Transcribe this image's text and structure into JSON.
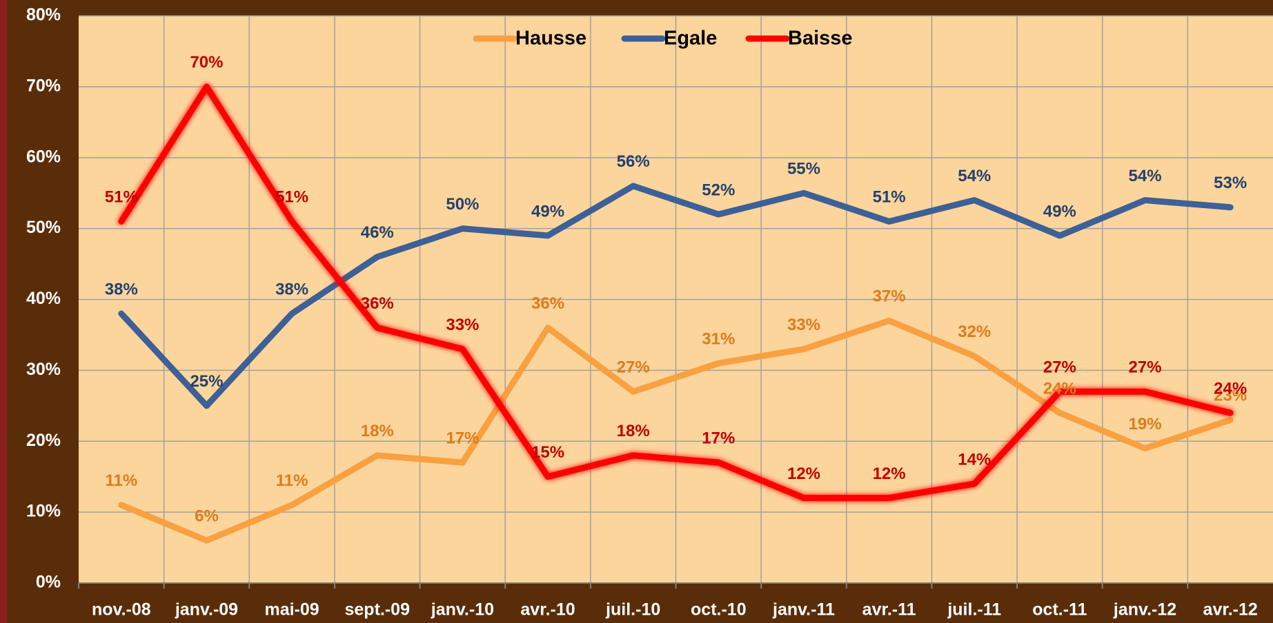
{
  "chart_data": {
    "type": "line",
    "categories": [
      "nov.-08",
      "janv.-09",
      "mai-09",
      "sept.-09",
      "janv.-10",
      "avr.-10",
      "juil.-10",
      "oct.-10",
      "janv.-11",
      "avr.-11",
      "juil.-11",
      "oct.-11",
      "janv.-12",
      "avr.-12"
    ],
    "series": [
      {
        "name": "Hausse",
        "color": "#f9a040",
        "label_color": "#e07b1a",
        "values": [
          11,
          6,
          11,
          18,
          17,
          36,
          27,
          31,
          33,
          37,
          32,
          24,
          19,
          23
        ],
        "value_labels": [
          "11%",
          "6%",
          "11%",
          "18%",
          "17%",
          "36%",
          "27%",
          "31%",
          "33%",
          "37%",
          "32%",
          "24%",
          "19%",
          "23%"
        ]
      },
      {
        "name": "Egale",
        "color": "#3d6096",
        "label_color": "#24406e",
        "values": [
          38,
          25,
          38,
          46,
          50,
          49,
          56,
          52,
          55,
          51,
          54,
          49,
          54,
          53
        ],
        "value_labels": [
          "38%",
          "25%",
          "38%",
          "46%",
          "50%",
          "49%",
          "56%",
          "52%",
          "55%",
          "51%",
          "54%",
          "49%",
          "54%",
          "53%"
        ]
      },
      {
        "name": "Baisse",
        "color": "#ff0000",
        "label_color": "#c00000",
        "values": [
          51,
          70,
          51,
          36,
          33,
          15,
          18,
          17,
          12,
          12,
          14,
          27,
          27,
          24
        ],
        "value_labels": [
          "51%",
          "70%",
          "51%",
          "36%",
          "33%",
          "15%",
          "18%",
          "17%",
          "12%",
          "12%",
          "14%",
          "27%",
          "27%",
          "24%"
        ]
      }
    ],
    "ylim": [
      0,
      80
    ],
    "yticks": [
      {
        "value": 0,
        "label": "0%"
      },
      {
        "value": 10,
        "label": "10%"
      },
      {
        "value": 20,
        "label": "20%"
      },
      {
        "value": 30,
        "label": "30%"
      },
      {
        "value": 40,
        "label": "40%"
      },
      {
        "value": 50,
        "label": "50%"
      },
      {
        "value": 60,
        "label": "60%"
      },
      {
        "value": 70,
        "label": "70%"
      },
      {
        "value": 80,
        "label": "80%"
      }
    ],
    "grid": true,
    "legend": "top"
  }
}
